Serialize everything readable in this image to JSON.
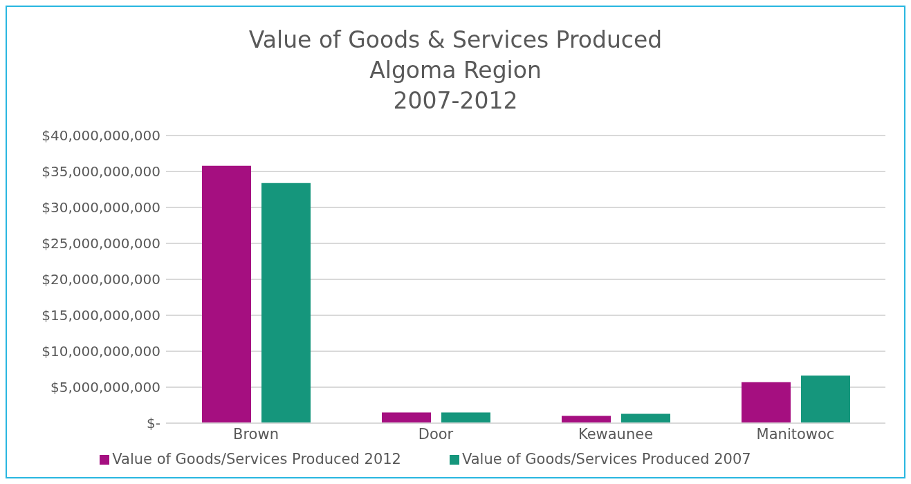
{
  "chart_data": {
    "type": "bar",
    "title": "Value of Goods & Services Produced\nAlgoma Region\n2007-2012",
    "categories": [
      "Brown",
      "Door",
      "Kewaunee",
      "Manitowoc"
    ],
    "series": [
      {
        "name": "Value of Goods/Services Produced 2012",
        "color": "#a50f80",
        "values": [
          35800000000,
          1500000000,
          1000000000,
          5700000000
        ]
      },
      {
        "name": "Value of Goods/Services Produced 2007",
        "color": "#15967c",
        "values": [
          33400000000,
          1500000000,
          1300000000,
          6600000000
        ]
      }
    ],
    "ylim": [
      0,
      40000000000
    ],
    "yticks": [
      {
        "value": 0,
        "label": "$-"
      },
      {
        "value": 5000000000,
        "label": "$5,000,000,000"
      },
      {
        "value": 10000000000,
        "label": "$10,000,000,000"
      },
      {
        "value": 15000000000,
        "label": "$15,000,000,000"
      },
      {
        "value": 20000000000,
        "label": "$20,000,000,000"
      },
      {
        "value": 25000000000,
        "label": "$25,000,000,000"
      },
      {
        "value": 30000000000,
        "label": "$30,000,000,000"
      },
      {
        "value": 35000000000,
        "label": "$35,000,000,000"
      },
      {
        "value": 40000000000,
        "label": "$40,000,000,000"
      }
    ],
    "grid": "y",
    "legend": "bottom"
  }
}
